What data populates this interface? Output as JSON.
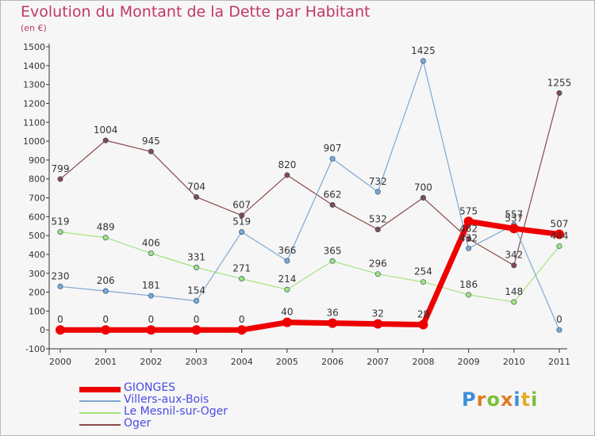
{
  "title": "Evolution du Montant de la Dette par Habitant",
  "subtitle": "(en €)",
  "logo": {
    "text": "Proxiti",
    "colors": [
      "#3d8fd6",
      "#e07b22",
      "#7cbf3a",
      "#e07b22",
      "#3d8fd6",
      "#e0b022",
      "#7cbf3a"
    ]
  },
  "chart_data": {
    "type": "line",
    "title": "Evolution du Montant de la Dette par Habitant",
    "ylabel": "(en €)",
    "x": [
      "2000",
      "2001",
      "2002",
      "2003",
      "2004",
      "2005",
      "2006",
      "2007",
      "2008",
      "2009",
      "2010",
      "2011"
    ],
    "ylim": [
      -100,
      1500
    ],
    "yticks": [
      -100,
      0,
      100,
      200,
      300,
      400,
      500,
      600,
      700,
      800,
      900,
      1000,
      1100,
      1200,
      1300,
      1400,
      1500
    ],
    "grid": false,
    "legend_position": "bottom-left",
    "series": [
      {
        "name": "GIONGES",
        "color": "#ee0000",
        "width": 7,
        "labels": true,
        "values": [
          0,
          0,
          0,
          0,
          0,
          40,
          36,
          32,
          28,
          575,
          537,
          507
        ]
      },
      {
        "name": "Villers-aux-Bois",
        "color": "#7fa8d0",
        "width": 1.2,
        "labels": true,
        "values": [
          230,
          206,
          181,
          154,
          519,
          366,
          907,
          732,
          1425,
          432,
          557,
          0
        ]
      },
      {
        "name": "Le Mesnil-sur-Oger",
        "color": "#a4e27c",
        "width": 1.2,
        "labels": true,
        "values": [
          519,
          489,
          406,
          331,
          271,
          214,
          365,
          296,
          254,
          186,
          148,
          444
        ]
      },
      {
        "name": "Oger",
        "color": "#8a4a4a",
        "width": 1.2,
        "labels": true,
        "values": [
          799,
          1004,
          945,
          704,
          607,
          820,
          662,
          532,
          700,
          482,
          342,
          1255
        ]
      }
    ]
  }
}
